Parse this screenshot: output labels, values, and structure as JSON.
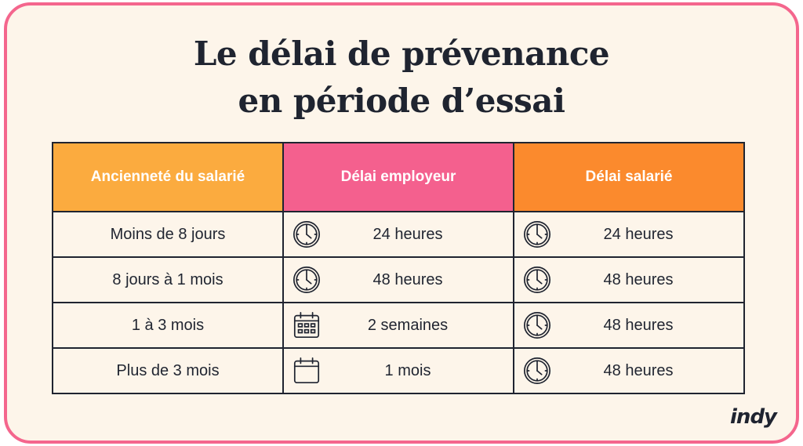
{
  "title": {
    "line1": "Le délai de prévenance",
    "line2": "en période d’essai"
  },
  "table": {
    "headers": [
      "Ancienneté du salarié",
      "Délai employeur",
      "Délai salarié"
    ],
    "header_colors": [
      "#fbab3f",
      "#f4608e",
      "#fb8a2d"
    ],
    "rows": [
      {
        "anciennete": "Moins de 8 jours",
        "employeur": "24 heures",
        "employeur_icon": "clock-icon",
        "salarie": "24 heures",
        "salarie_icon": "clock-icon"
      },
      {
        "anciennete": "8 jours à 1 mois",
        "employeur": "48 heures",
        "employeur_icon": "clock-icon",
        "salarie": "48 heures",
        "salarie_icon": "clock-icon"
      },
      {
        "anciennete": "1 à 3 mois",
        "employeur": "2 semaines",
        "employeur_icon": "calendar-grid-icon",
        "salarie": "48 heures",
        "salarie_icon": "clock-icon"
      },
      {
        "anciennete": "Plus de 3 mois",
        "employeur": "1 mois",
        "employeur_icon": "calendar-icon",
        "salarie": "48 heures",
        "salarie_icon": "clock-icon"
      }
    ]
  },
  "brand": {
    "logo": "indy"
  },
  "colors": {
    "border": "#f4668d",
    "background": "#fdf5ea",
    "text": "#1f2430"
  }
}
